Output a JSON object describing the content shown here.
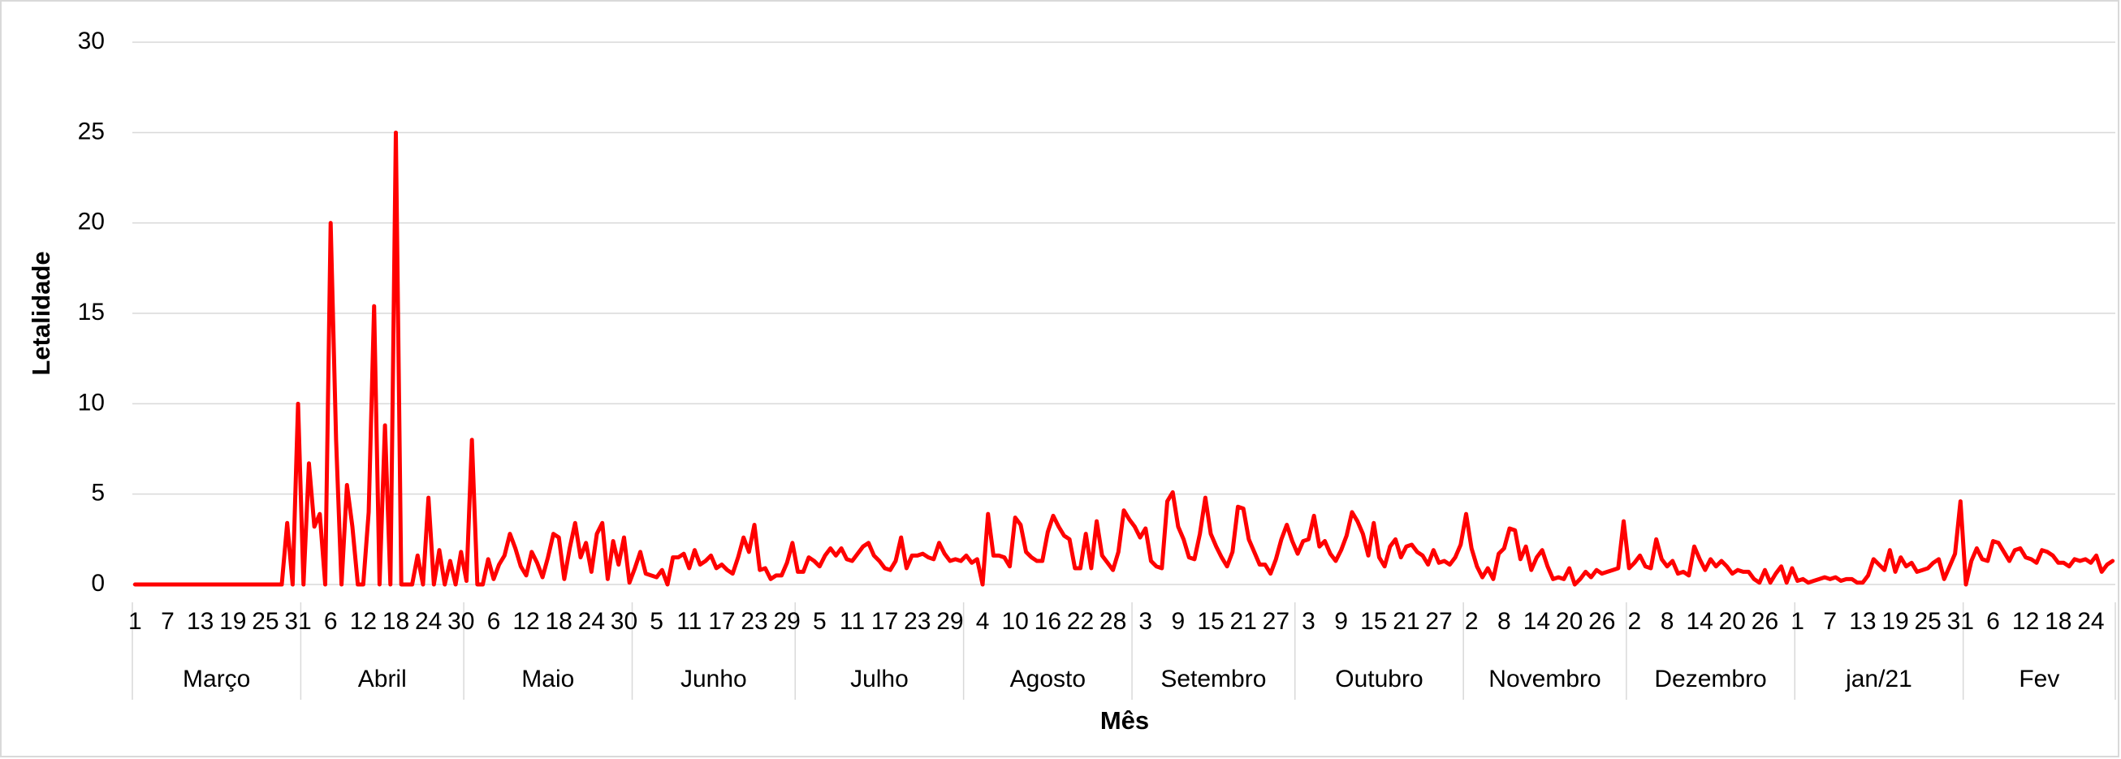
{
  "chart_data": {
    "type": "line",
    "x_title": "Mês",
    "y_title": "Letalidade",
    "color": "#ff0000",
    "ylim": [
      0,
      30
    ],
    "yticks": [
      0,
      5,
      10,
      15,
      20,
      25,
      30
    ],
    "grid": true,
    "groups": [
      {
        "label": "Março",
        "categories": [
          "1",
          null,
          null,
          null,
          null,
          null,
          "7",
          null,
          null,
          null,
          null,
          null,
          "13",
          null,
          null,
          null,
          null,
          null,
          "19",
          null,
          null,
          null,
          null,
          null,
          "25",
          null,
          null,
          null,
          null,
          null,
          "31"
        ],
        "values": [
          0,
          0,
          0,
          0,
          0,
          0,
          0,
          0,
          0,
          0,
          0,
          0,
          0,
          0,
          0,
          0,
          0,
          0,
          0,
          0,
          0,
          0,
          0,
          0,
          0,
          0,
          0,
          0,
          3.4,
          0,
          10
        ]
      },
      {
        "label": "Abril",
        "categories": [
          null,
          null,
          null,
          null,
          null,
          "6",
          null,
          null,
          null,
          null,
          null,
          "12",
          null,
          null,
          null,
          null,
          null,
          "18",
          null,
          null,
          null,
          null,
          null,
          "24",
          null,
          null,
          null,
          null,
          null,
          "30"
        ],
        "values": [
          0,
          6.7,
          3.2,
          3.9,
          0,
          20,
          8,
          0,
          5.5,
          3.2,
          0,
          0,
          4,
          15.4,
          0,
          8.8,
          0,
          25,
          0,
          0,
          0,
          1.6,
          0,
          4.8,
          0,
          1.9,
          0,
          1.3,
          0,
          1.8
        ]
      },
      {
        "label": "Maio",
        "categories": [
          null,
          null,
          null,
          null,
          null,
          "6",
          null,
          null,
          null,
          null,
          null,
          "12",
          null,
          null,
          null,
          null,
          null,
          "18",
          null,
          null,
          null,
          null,
          null,
          "24",
          null,
          null,
          null,
          null,
          null,
          "30",
          null
        ],
        "values": [
          0.2,
          8,
          0,
          0,
          1.4,
          0.3,
          1.1,
          1.6,
          2.8,
          2,
          1,
          0.5,
          1.8,
          1.2,
          0.4,
          1.5,
          2.8,
          2.6,
          0.3,
          2,
          3.4,
          1.5,
          2.3,
          0.7,
          2.8,
          3.4,
          0.3,
          2.4,
          1.1,
          2.6,
          0.1
        ]
      },
      {
        "label": "Junho",
        "categories": [
          null,
          null,
          null,
          null,
          "5",
          null,
          null,
          null,
          null,
          null,
          "11",
          null,
          null,
          null,
          null,
          null,
          "17",
          null,
          null,
          null,
          null,
          null,
          "23",
          null,
          null,
          null,
          null,
          null,
          "29",
          null
        ],
        "values": [
          0.9,
          1.8,
          0.6,
          0.5,
          0.4,
          0.8,
          0,
          1.5,
          1.5,
          1.7,
          0.9,
          1.9,
          1.1,
          1.3,
          1.6,
          0.9,
          1.1,
          0.8,
          0.6,
          1.5,
          2.6,
          1.8,
          3.3,
          0.8,
          0.9,
          0.3,
          0.5,
          0.5,
          1.2,
          2.3
        ]
      },
      {
        "label": "Julho",
        "categories": [
          null,
          null,
          null,
          null,
          "5",
          null,
          null,
          null,
          null,
          null,
          "11",
          null,
          null,
          null,
          null,
          null,
          "17",
          null,
          null,
          null,
          null,
          null,
          "23",
          null,
          null,
          null,
          null,
          null,
          "29",
          null,
          null
        ],
        "values": [
          0.7,
          0.7,
          1.5,
          1.3,
          1,
          1.6,
          2,
          1.6,
          2,
          1.4,
          1.3,
          1.7,
          2.1,
          2.3,
          1.6,
          1.3,
          0.9,
          0.8,
          1.3,
          2.6,
          0.9,
          1.6,
          1.6,
          1.7,
          1.5,
          1.4,
          2.3,
          1.7,
          1.3,
          1.4,
          1.3
        ]
      },
      {
        "label": "Agosto",
        "categories": [
          null,
          null,
          null,
          "4",
          null,
          null,
          null,
          null,
          null,
          "10",
          null,
          null,
          null,
          null,
          null,
          "16",
          null,
          null,
          null,
          null,
          null,
          "22",
          null,
          null,
          null,
          null,
          null,
          "28",
          null,
          null,
          null
        ],
        "values": [
          1.6,
          1.2,
          1.4,
          0,
          3.9,
          1.6,
          1.6,
          1.5,
          1,
          3.7,
          3.3,
          1.8,
          1.5,
          1.3,
          1.3,
          2.9,
          3.8,
          3.2,
          2.7,
          2.5,
          0.9,
          0.9,
          2.8,
          0.9,
          3.5,
          1.6,
          1.2,
          0.8,
          1.8,
          4.1,
          3.6
        ]
      },
      {
        "label": "Setembro",
        "categories": [
          null,
          null,
          "3",
          null,
          null,
          null,
          null,
          null,
          "9",
          null,
          null,
          null,
          null,
          null,
          "15",
          null,
          null,
          null,
          null,
          null,
          "21",
          null,
          null,
          null,
          null,
          null,
          "27",
          null,
          null,
          null
        ],
        "values": [
          3.2,
          2.6,
          3.1,
          1.3,
          1,
          0.9,
          4.6,
          5.1,
          3.2,
          2.5,
          1.5,
          1.4,
          2.8,
          4.8,
          2.8,
          2.1,
          1.5,
          1,
          1.8,
          4.3,
          4.2,
          2.5,
          1.8,
          1.1,
          1.1,
          0.6,
          1.4,
          2.5,
          3.3,
          2.4
        ]
      },
      {
        "label": "Outubro",
        "categories": [
          null,
          null,
          "3",
          null,
          null,
          null,
          null,
          null,
          "9",
          null,
          null,
          null,
          null,
          null,
          "15",
          null,
          null,
          null,
          null,
          null,
          "21",
          null,
          null,
          null,
          null,
          null,
          "27",
          null,
          null,
          null,
          null
        ],
        "values": [
          1.7,
          2.4,
          2.5,
          3.8,
          2.1,
          2.4,
          1.7,
          1.3,
          1.9,
          2.7,
          4,
          3.5,
          2.8,
          1.6,
          3.4,
          1.5,
          1,
          2.1,
          2.5,
          1.5,
          2.1,
          2.2,
          1.8,
          1.6,
          1.1,
          1.9,
          1.2,
          1.3,
          1.1,
          1.5,
          2.2
        ]
      },
      {
        "label": "Novembro",
        "categories": [
          null,
          "2",
          null,
          null,
          null,
          null,
          null,
          "8",
          null,
          null,
          null,
          null,
          null,
          "14",
          null,
          null,
          null,
          null,
          null,
          "20",
          null,
          null,
          null,
          null,
          null,
          "26",
          null,
          null,
          null,
          null
        ],
        "values": [
          3.9,
          2,
          1,
          0.4,
          0.9,
          0.3,
          1.7,
          2,
          3.1,
          3,
          1.4,
          2.1,
          0.8,
          1.5,
          1.9,
          1,
          0.3,
          0.4,
          0.3,
          0.9,
          0,
          0.3,
          0.7,
          0.4,
          0.8,
          0.6,
          0.7,
          0.8,
          0.9,
          3.5
        ]
      },
      {
        "label": "Dezembro",
        "categories": [
          null,
          "2",
          null,
          null,
          null,
          null,
          null,
          "8",
          null,
          null,
          null,
          null,
          null,
          "14",
          null,
          null,
          null,
          null,
          null,
          "20",
          null,
          null,
          null,
          null,
          null,
          "26",
          null,
          null,
          null,
          null,
          null
        ],
        "values": [
          0.9,
          1.2,
          1.6,
          1,
          0.9,
          2.5,
          1.4,
          1,
          1.3,
          0.6,
          0.7,
          0.5,
          2.1,
          1.4,
          0.8,
          1.4,
          1,
          1.3,
          1,
          0.6,
          0.8,
          0.7,
          0.7,
          0.3,
          0.1,
          0.8,
          0.1,
          0.6,
          1,
          0.1,
          0.9
        ]
      },
      {
        "label": "jan/21",
        "categories": [
          "1",
          null,
          null,
          null,
          null,
          null,
          "7",
          null,
          null,
          null,
          null,
          null,
          "13",
          null,
          null,
          null,
          null,
          null,
          "19",
          null,
          null,
          null,
          null,
          null,
          "25",
          null,
          null,
          null,
          null,
          null,
          "31"
        ],
        "values": [
          0.2,
          0.3,
          0.1,
          0.2,
          0.3,
          0.4,
          0.3,
          0.4,
          0.2,
          0.3,
          0.3,
          0.1,
          0.1,
          0.5,
          1.4,
          1.1,
          0.8,
          1.9,
          0.7,
          1.5,
          1,
          1.2,
          0.7,
          0.8,
          0.9,
          1.2,
          1.4,
          0.3,
          1,
          1.7,
          4.6
        ]
      },
      {
        "label": "Fev",
        "categories": [
          null,
          null,
          null,
          null,
          null,
          "6",
          null,
          null,
          null,
          null,
          null,
          "12",
          null,
          null,
          null,
          null,
          null,
          "18",
          null,
          null,
          null,
          null,
          null,
          "24",
          null,
          null,
          null,
          null
        ],
        "values": [
          0,
          1.3,
          2,
          1.4,
          1.3,
          2.4,
          2.3,
          1.8,
          1.3,
          1.9,
          2,
          1.5,
          1.4,
          1.2,
          1.9,
          1.8,
          1.6,
          1.2,
          1.2,
          1,
          1.4,
          1.3,
          1.4,
          1.2,
          1.6,
          0.7,
          1.1,
          1.3
        ]
      }
    ]
  }
}
